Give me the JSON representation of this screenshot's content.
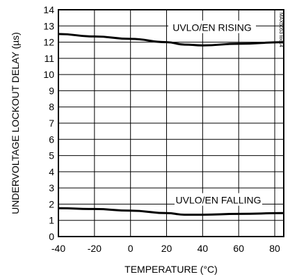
{
  "chart_data": {
    "type": "line",
    "xlabel": "TEMPERATURE (°C)",
    "ylabel": "UNDERVOLTAGE LOCKOUT DELAY (µs)",
    "xlim": [
      -40,
      85
    ],
    "ylim": [
      0,
      14
    ],
    "xticks": [
      -40,
      -20,
      0,
      20,
      40,
      60,
      80
    ],
    "yticks": [
      0,
      1,
      2,
      3,
      4,
      5,
      6,
      7,
      8,
      9,
      10,
      11,
      12,
      13,
      14
    ],
    "grid": true,
    "series": [
      {
        "name": "UVLO/EN RISING",
        "x": [
          -40,
          -20,
          0,
          20,
          30,
          40,
          60,
          85
        ],
        "y": [
          12.5,
          12.35,
          12.2,
          12.0,
          11.85,
          11.8,
          11.9,
          12.0
        ]
      },
      {
        "name": "UVLO/EN FALLING",
        "x": [
          -40,
          -20,
          0,
          20,
          30,
          40,
          60,
          85
        ],
        "y": [
          1.75,
          1.7,
          1.6,
          1.45,
          1.35,
          1.35,
          1.4,
          1.45
        ]
      }
    ],
    "watermark": "MAX5053 toc14"
  }
}
